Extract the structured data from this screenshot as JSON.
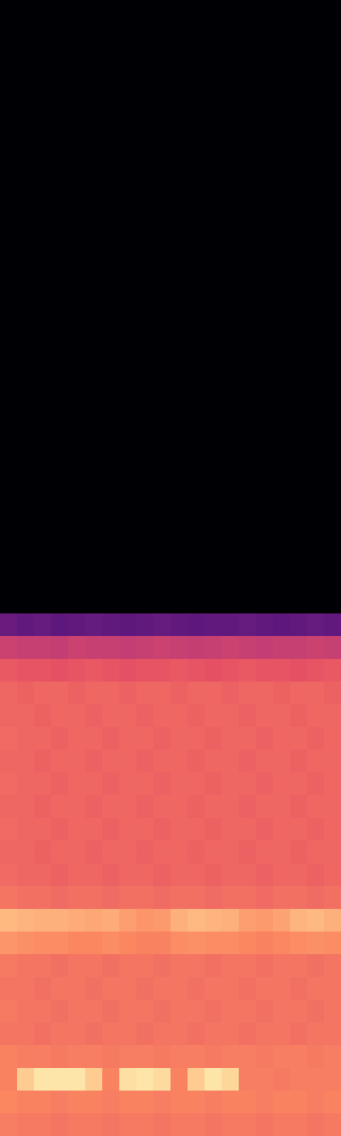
{
  "chart_data": {
    "type": "heatmap",
    "tick_labels": false,
    "color_range": [
      0,
      100
    ],
    "cells": [
      [
        0,
        0,
        0,
        0,
        0,
        0,
        0,
        0,
        0,
        0,
        0,
        0,
        0,
        0,
        0,
        0,
        0,
        0,
        0,
        0
      ],
      [
        0,
        0,
        0,
        0,
        0,
        0,
        0,
        0,
        0,
        0,
        0,
        0,
        0,
        0,
        0,
        0,
        0,
        0,
        0,
        0
      ],
      [
        0,
        0,
        0,
        0,
        0,
        0,
        0,
        0,
        0,
        0,
        0,
        0,
        0,
        0,
        0,
        0,
        0,
        0,
        0,
        0
      ],
      [
        0,
        0,
        0,
        0,
        0,
        0,
        0,
        0,
        0,
        0,
        0,
        0,
        0,
        0,
        0,
        0,
        0,
        0,
        0,
        0
      ],
      [
        0,
        0,
        0,
        0,
        0,
        0,
        0,
        0,
        0,
        0,
        0,
        0,
        0,
        0,
        0,
        0,
        0,
        0,
        0,
        0
      ],
      [
        0,
        0,
        0,
        0,
        0,
        0,
        0,
        0,
        0,
        0,
        0,
        0,
        0,
        0,
        0,
        0,
        0,
        0,
        0,
        0
      ],
      [
        0,
        0,
        0,
        0,
        0,
        0,
        0,
        0,
        0,
        0,
        0,
        0,
        0,
        0,
        0,
        0,
        0,
        0,
        0,
        0
      ],
      [
        0,
        0,
        0,
        0,
        0,
        0,
        0,
        0,
        0,
        0,
        0,
        0,
        0,
        0,
        0,
        0,
        0,
        0,
        0,
        0
      ],
      [
        0,
        0,
        0,
        0,
        0,
        0,
        0,
        0,
        0,
        0,
        0,
        0,
        0,
        0,
        0,
        0,
        0,
        0,
        0,
        0
      ],
      [
        0,
        0,
        0,
        0,
        0,
        0,
        0,
        0,
        0,
        0,
        0,
        0,
        0,
        0,
        0,
        0,
        0,
        0,
        0,
        0
      ],
      [
        0,
        0,
        0,
        0,
        0,
        0,
        0,
        0,
        0,
        0,
        0,
        0,
        0,
        0,
        0,
        0,
        0,
        0,
        0,
        0
      ],
      [
        0,
        0,
        0,
        0,
        0,
        0,
        0,
        0,
        0,
        0,
        0,
        0,
        0,
        0,
        0,
        0,
        0,
        0,
        0,
        0
      ],
      [
        0,
        0,
        0,
        0,
        0,
        0,
        0,
        0,
        0,
        0,
        0,
        0,
        0,
        0,
        0,
        0,
        0,
        0,
        0,
        0
      ],
      [
        0,
        0,
        0,
        0,
        0,
        0,
        0,
        0,
        0,
        0,
        0,
        0,
        0,
        0,
        0,
        0,
        0,
        0,
        0,
        0
      ],
      [
        0,
        0,
        0,
        0,
        0,
        0,
        0,
        0,
        0,
        0,
        0,
        0,
        0,
        0,
        0,
        0,
        0,
        0,
        0,
        0
      ],
      [
        0,
        0,
        0,
        0,
        0,
        0,
        0,
        0,
        0,
        0,
        0,
        0,
        0,
        0,
        0,
        0,
        0,
        0,
        0,
        0
      ],
      [
        0,
        0,
        0,
        0,
        0,
        0,
        0,
        0,
        0,
        0,
        0,
        0,
        0,
        0,
        0,
        0,
        0,
        0,
        0,
        0
      ],
      [
        0,
        0,
        0,
        0,
        0,
        0,
        0,
        0,
        0,
        0,
        0,
        0,
        0,
        0,
        0,
        0,
        0,
        0,
        0,
        0
      ],
      [
        0,
        0,
        0,
        0,
        0,
        0,
        0,
        0,
        0,
        0,
        0,
        0,
        0,
        0,
        0,
        0,
        0,
        0,
        0,
        0
      ],
      [
        0,
        0,
        0,
        0,
        0,
        0,
        0,
        0,
        0,
        0,
        0,
        0,
        0,
        0,
        0,
        0,
        0,
        0,
        0,
        0
      ],
      [
        0,
        0,
        0,
        0,
        0,
        0,
        0,
        0,
        0,
        0,
        0,
        0,
        0,
        0,
        0,
        0,
        0,
        0,
        0,
        0
      ],
      [
        0,
        0,
        0,
        0,
        0,
        0,
        0,
        0,
        0,
        0,
        0,
        0,
        0,
        0,
        0,
        0,
        0,
        0,
        0,
        0
      ],
      [
        0,
        0,
        0,
        0,
        0,
        0,
        0,
        0,
        0,
        0,
        0,
        0,
        0,
        0,
        0,
        0,
        0,
        0,
        0,
        0
      ],
      [
        0,
        0,
        0,
        0,
        0,
        0,
        0,
        0,
        0,
        0,
        0,
        0,
        0,
        0,
        0,
        0,
        0,
        0,
        0,
        0
      ],
      [
        0,
        0,
        0,
        0,
        0,
        0,
        0,
        0,
        0,
        0,
        0,
        0,
        0,
        0,
        0,
        0,
        0,
        0,
        0,
        0
      ],
      [
        0,
        0,
        0,
        0,
        0,
        0,
        0,
        0,
        0,
        0,
        0,
        0,
        0,
        0,
        0,
        0,
        0,
        0,
        0,
        0
      ],
      [
        0,
        0,
        0,
        0,
        0,
        0,
        0,
        0,
        0,
        0,
        0,
        0,
        0,
        0,
        0,
        0,
        0,
        0,
        0,
        0
      ],
      [
        32,
        30,
        31,
        29,
        30,
        31,
        30,
        29,
        30,
        31,
        30,
        29,
        30,
        30,
        31,
        30,
        29,
        30,
        31,
        30
      ],
      [
        56,
        55,
        55,
        54,
        56,
        55,
        55,
        54,
        55,
        56,
        55,
        54,
        55,
        56,
        55,
        54,
        55,
        55,
        56,
        55
      ],
      [
        65,
        64,
        64,
        63,
        64,
        65,
        64,
        63,
        64,
        64,
        65,
        64,
        63,
        64,
        65,
        64,
        64,
        63,
        64,
        65
      ],
      [
        68,
        67,
        68,
        68,
        67,
        68,
        68,
        67,
        68,
        68,
        67,
        68,
        68,
        67,
        68,
        68,
        67,
        68,
        68,
        67
      ],
      [
        68,
        68,
        67,
        68,
        68,
        67,
        68,
        68,
        67,
        68,
        68,
        67,
        68,
        68,
        67,
        68,
        68,
        67,
        68,
        68
      ],
      [
        69,
        68,
        68,
        67,
        68,
        68,
        67,
        68,
        68,
        67,
        68,
        68,
        67,
        68,
        68,
        67,
        68,
        68,
        67,
        68
      ],
      [
        68,
        68,
        67,
        68,
        68,
        67,
        68,
        68,
        67,
        68,
        68,
        67,
        68,
        68,
        67,
        68,
        68,
        67,
        68,
        68
      ],
      [
        69,
        68,
        68,
        67,
        68,
        68,
        67,
        68,
        68,
        67,
        68,
        68,
        67,
        68,
        68,
        67,
        68,
        68,
        67,
        68
      ],
      [
        68,
        68,
        67,
        68,
        68,
        67,
        68,
        68,
        67,
        68,
        68,
        67,
        68,
        68,
        67,
        68,
        68,
        67,
        68,
        68
      ],
      [
        69,
        68,
        68,
        67,
        68,
        68,
        67,
        68,
        68,
        67,
        68,
        68,
        67,
        68,
        68,
        67,
        68,
        68,
        67,
        68
      ],
      [
        68,
        68,
        67,
        68,
        68,
        67,
        68,
        68,
        67,
        68,
        68,
        67,
        68,
        68,
        67,
        68,
        68,
        67,
        68,
        68
      ],
      [
        69,
        68,
        68,
        67,
        68,
        68,
        67,
        68,
        68,
        67,
        68,
        68,
        67,
        68,
        68,
        67,
        68,
        68,
        67,
        68
      ],
      [
        71,
        70,
        70,
        69,
        70,
        70,
        69,
        70,
        70,
        69,
        70,
        70,
        69,
        70,
        70,
        69,
        70,
        70,
        69,
        70
      ],
      [
        86,
        85,
        84,
        84,
        83,
        82,
        83,
        80,
        78,
        79,
        84,
        86,
        85,
        84,
        80,
        79,
        81,
        85,
        86,
        84
      ],
      [
        78,
        77,
        76,
        76,
        75,
        75,
        76,
        75,
        74,
        74,
        76,
        77,
        76,
        76,
        75,
        74,
        75,
        76,
        77,
        76
      ],
      [
        72,
        71,
        71,
        70,
        71,
        71,
        70,
        71,
        71,
        70,
        71,
        71,
        70,
        71,
        71,
        70,
        71,
        71,
        70,
        71
      ],
      [
        71,
        71,
        70,
        71,
        71,
        70,
        71,
        71,
        70,
        71,
        71,
        70,
        71,
        71,
        70,
        71,
        71,
        70,
        71,
        71
      ],
      [
        72,
        71,
        71,
        70,
        71,
        71,
        70,
        71,
        71,
        70,
        71,
        71,
        70,
        71,
        71,
        70,
        71,
        71,
        70,
        71
      ],
      [
        71,
        71,
        70,
        71,
        71,
        70,
        71,
        71,
        70,
        71,
        71,
        70,
        71,
        71,
        70,
        71,
        71,
        70,
        71,
        71
      ],
      [
        74,
        73,
        73,
        72,
        73,
        73,
        72,
        73,
        73,
        72,
        73,
        73,
        72,
        73,
        73,
        72,
        73,
        73,
        72,
        73
      ],
      [
        74,
        90,
        95,
        95,
        95,
        90,
        74,
        94,
        95,
        93,
        74,
        90,
        95,
        92,
        73,
        73,
        72,
        73,
        73,
        73
      ],
      [
        75,
        74,
        74,
        73,
        74,
        74,
        73,
        74,
        74,
        73,
        74,
        74,
        73,
        74,
        74,
        73,
        74,
        74,
        73,
        74
      ],
      [
        73,
        72,
        72,
        71,
        72,
        72,
        71,
        72,
        72,
        71,
        72,
        72,
        71,
        72,
        72,
        71,
        72,
        72,
        71,
        72
      ]
    ]
  }
}
